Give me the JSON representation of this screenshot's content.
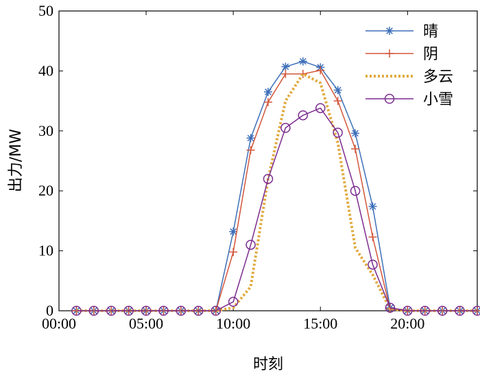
{
  "chart_data": {
    "type": "line",
    "xlabel": "时刻",
    "ylabel": "出力/MW",
    "x": [
      1,
      2,
      3,
      4,
      5,
      6,
      7,
      8,
      9,
      10,
      11,
      12,
      13,
      14,
      15,
      16,
      17,
      18,
      19,
      20,
      21,
      22,
      23,
      24
    ],
    "xlim": [
      0,
      24
    ],
    "ylim": [
      0,
      50
    ],
    "xticks": [
      0,
      5,
      10,
      15,
      20
    ],
    "xtick_labels": [
      "00:00",
      "05:00",
      "10:00",
      "15:00",
      "20:00"
    ],
    "yticks": [
      0,
      10,
      20,
      30,
      40,
      50
    ],
    "ytick_labels": [
      "0",
      "10",
      "20",
      "30",
      "40",
      "50"
    ],
    "grid": false,
    "legend_position": "top-right",
    "series": [
      {
        "name": "晴",
        "color": "#3d6fb8",
        "marker": "asterisk",
        "dash": "solid",
        "values": [
          0,
          0,
          0,
          0,
          0,
          0,
          0,
          0,
          0,
          13.2,
          28.8,
          36.5,
          40.7,
          41.6,
          40.6,
          36.8,
          29.6,
          17.4,
          0.5,
          0,
          0,
          0,
          0,
          0
        ]
      },
      {
        "name": "阴",
        "color": "#d2553a",
        "marker": "plus",
        "dash": "solid",
        "values": [
          0,
          0,
          0,
          0,
          0,
          0,
          0,
          0,
          0,
          9.8,
          26.8,
          34.8,
          39.5,
          39.5,
          40.1,
          35.0,
          27.0,
          12.3,
          0.3,
          0,
          0,
          0,
          0,
          0
        ]
      },
      {
        "name": "多云",
        "color": "#e0aa3e",
        "marker": "none",
        "dash": "dotted",
        "values": [
          0,
          0,
          0,
          0,
          0,
          0,
          0,
          0,
          0,
          0.5,
          4.0,
          22.0,
          35.0,
          39.5,
          38.0,
          28.0,
          10.5,
          6.0,
          0.3,
          0,
          0,
          0,
          0,
          0
        ]
      },
      {
        "name": "小雪",
        "color": "#7b2b8e",
        "marker": "circle",
        "dash": "solid",
        "values": [
          0,
          0,
          0,
          0,
          0,
          0,
          0,
          0,
          0,
          1.5,
          11.0,
          22.0,
          30.5,
          32.6,
          33.8,
          29.7,
          20.0,
          7.7,
          0.5,
          0,
          0,
          0,
          0,
          0
        ]
      }
    ]
  }
}
